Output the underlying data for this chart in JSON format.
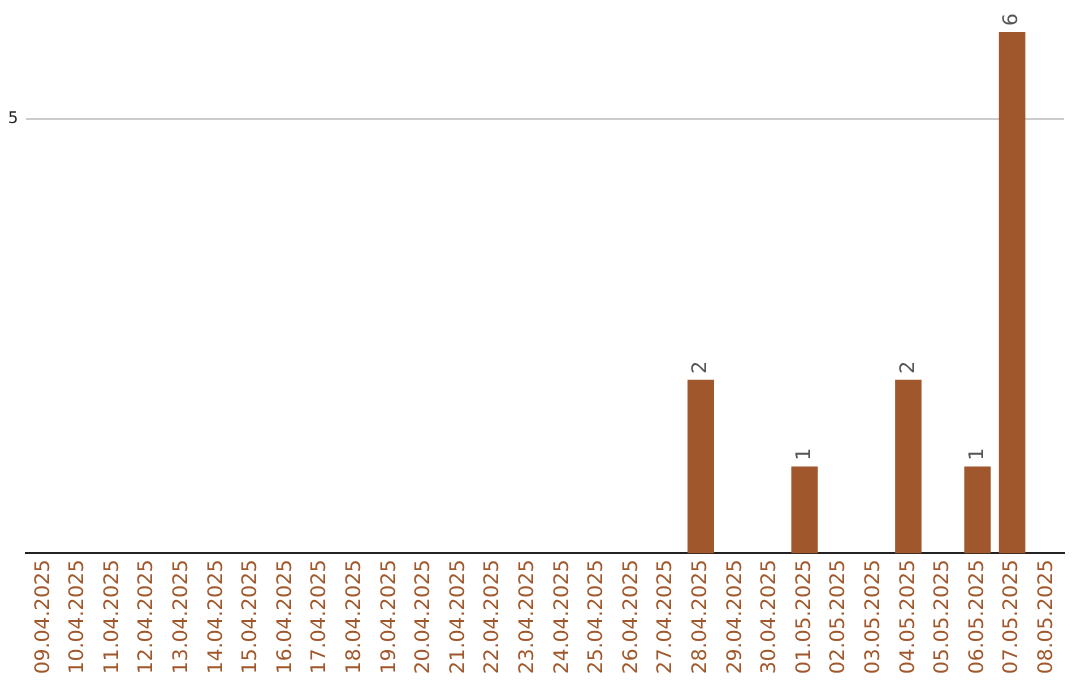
{
  "chart_data": {
    "type": "bar",
    "categories": [
      "09.04.2025",
      "10.04.2025",
      "11.04.2025",
      "12.04.2025",
      "13.04.2025",
      "14.04.2025",
      "15.04.2025",
      "16.04.2025",
      "17.04.2025",
      "18.04.2025",
      "19.04.2025",
      "20.04.2025",
      "21.04.2025",
      "22.04.2025",
      "23.04.2025",
      "24.04.2025",
      "25.04.2025",
      "26.04.2025",
      "27.04.2025",
      "28.04.2025",
      "29.04.2025",
      "30.04.2025",
      "01.05.2025",
      "02.05.2025",
      "03.05.2025",
      "04.05.2025",
      "05.05.2025",
      "06.05.2025",
      "07.05.2025",
      "08.05.2025"
    ],
    "values": [
      null,
      null,
      null,
      null,
      null,
      null,
      null,
      null,
      null,
      null,
      null,
      null,
      null,
      null,
      null,
      null,
      null,
      null,
      null,
      2,
      null,
      null,
      1,
      null,
      null,
      2,
      null,
      1,
      6,
      null
    ],
    "value_labels": [
      null,
      null,
      null,
      null,
      null,
      null,
      null,
      null,
      null,
      null,
      null,
      null,
      null,
      null,
      null,
      null,
      null,
      null,
      null,
      "2",
      null,
      null,
      "1",
      null,
      null,
      "2",
      null,
      "1",
      "6",
      null
    ],
    "color": "#a0572b",
    "ylim": [
      0,
      6
    ],
    "yticks": [
      5
    ],
    "grid": "y",
    "legend": false
  }
}
